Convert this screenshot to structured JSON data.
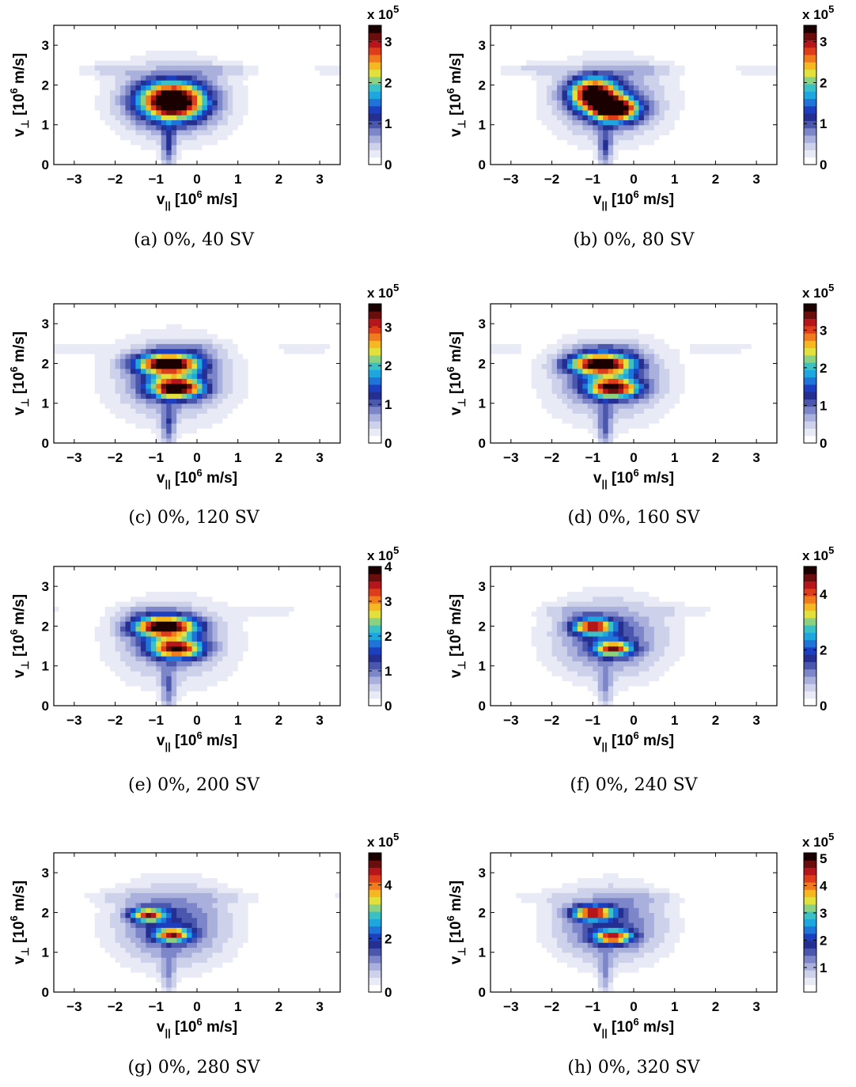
{
  "chart_data": [
    {
      "type": "heatmap",
      "caption": "(a) 0%, 40 SV",
      "x_label_base": "v",
      "x_label_sub": "||",
      "y_label_base": "v",
      "y_label_sub": "⊥",
      "unit_pre": "[10",
      "unit_exp": "6",
      "unit_post": " m/s]",
      "xlim": [
        -3.5,
        3.5
      ],
      "ylim": [
        0,
        3.5
      ],
      "x_ticks": [
        "-3",
        "-2",
        "-1",
        "0",
        "1",
        "2",
        "3"
      ],
      "y_ticks": [
        "0",
        "1",
        "2",
        "3"
      ],
      "colorbar": {
        "min": 0,
        "max": 3.4,
        "ticks": [
          "0",
          "1",
          "2",
          "3"
        ],
        "exponent_label": "x 10",
        "exponent": "5"
      },
      "peaks": [
        {
          "x": -0.6,
          "y": 1.6,
          "amp": 3.4,
          "sx": 0.55,
          "sy": 0.32
        }
      ],
      "base": {
        "x": -0.6,
        "y": 1.6,
        "amp": 1.0,
        "sx": 1.0,
        "sy": 0.7
      }
    },
    {
      "type": "heatmap",
      "caption": "(b) 0%, 80 SV",
      "x_label_base": "v",
      "x_label_sub": "||",
      "y_label_base": "v",
      "y_label_sub": "⊥",
      "unit_pre": "[10",
      "unit_exp": "6",
      "unit_post": " m/s]",
      "xlim": [
        -3.5,
        3.5
      ],
      "ylim": [
        0,
        3.5
      ],
      "x_ticks": [
        "-3",
        "-2",
        "-1",
        "0",
        "1",
        "2",
        "3"
      ],
      "y_ticks": [
        "0",
        "1",
        "2",
        "3"
      ],
      "colorbar": {
        "min": 0,
        "max": 3.4,
        "ticks": [
          "0",
          "1",
          "2",
          "3"
        ],
        "exponent_label": "x 10",
        "exponent": "5"
      },
      "peaks": [
        {
          "x": -1.0,
          "y": 1.8,
          "amp": 3.0,
          "sx": 0.4,
          "sy": 0.28
        },
        {
          "x": -0.45,
          "y": 1.4,
          "amp": 3.1,
          "sx": 0.4,
          "sy": 0.22
        }
      ],
      "base": {
        "x": -0.6,
        "y": 1.6,
        "amp": 1.0,
        "sx": 1.0,
        "sy": 0.7
      }
    },
    {
      "type": "heatmap",
      "caption": "(c) 0%, 120 SV",
      "x_label_base": "v",
      "x_label_sub": "||",
      "y_label_base": "v",
      "y_label_sub": "⊥",
      "unit_pre": "[10",
      "unit_exp": "6",
      "unit_post": " m/s]",
      "xlim": [
        -3.5,
        3.5
      ],
      "ylim": [
        0,
        3.5
      ],
      "x_ticks": [
        "-3",
        "-2",
        "-1",
        "0",
        "1",
        "2",
        "3"
      ],
      "y_ticks": [
        "0",
        "1",
        "2",
        "3"
      ],
      "colorbar": {
        "min": 0,
        "max": 3.6,
        "ticks": [
          "0",
          "1",
          "2",
          "3"
        ],
        "exponent_label": "x 10",
        "exponent": "5"
      },
      "peaks": [
        {
          "x": -0.7,
          "y": 2.0,
          "amp": 3.4,
          "sx": 0.55,
          "sy": 0.18
        },
        {
          "x": -0.5,
          "y": 1.4,
          "amp": 3.3,
          "sx": 0.45,
          "sy": 0.18
        }
      ],
      "base": {
        "x": -0.6,
        "y": 1.6,
        "amp": 1.0,
        "sx": 1.05,
        "sy": 0.75
      }
    },
    {
      "type": "heatmap",
      "caption": "(d) 0%, 160 SV",
      "x_label_base": "v",
      "x_label_sub": "||",
      "y_label_base": "v",
      "y_label_sub": "⊥",
      "unit_pre": "[10",
      "unit_exp": "6",
      "unit_post": " m/s]",
      "xlim": [
        -3.5,
        3.5
      ],
      "ylim": [
        0,
        3.5
      ],
      "x_ticks": [
        "-3",
        "-2",
        "-1",
        "0",
        "1",
        "2",
        "3"
      ],
      "y_ticks": [
        "0",
        "1",
        "2",
        "3"
      ],
      "colorbar": {
        "min": 0,
        "max": 3.7,
        "ticks": [
          "0",
          "1",
          "2",
          "3"
        ],
        "exponent_label": "x 10",
        "exponent": "5"
      },
      "peaks": [
        {
          "x": -0.8,
          "y": 2.0,
          "amp": 3.5,
          "sx": 0.55,
          "sy": 0.18
        },
        {
          "x": -0.5,
          "y": 1.4,
          "amp": 3.0,
          "sx": 0.45,
          "sy": 0.18
        }
      ],
      "base": {
        "x": -0.6,
        "y": 1.6,
        "amp": 1.0,
        "sx": 1.05,
        "sy": 0.75
      }
    },
    {
      "type": "heatmap",
      "caption": "(e) 0%, 200 SV",
      "x_label_base": "v",
      "x_label_sub": "||",
      "y_label_base": "v",
      "y_label_sub": "⊥",
      "unit_pre": "[10",
      "unit_exp": "6",
      "unit_post": " m/s]",
      "xlim": [
        -3.5,
        3.5
      ],
      "ylim": [
        0,
        3.5
      ],
      "x_ticks": [
        "-3",
        "-2",
        "-1",
        "0",
        "1",
        "2",
        "3"
      ],
      "y_ticks": [
        "0",
        "1",
        "2",
        "3"
      ],
      "colorbar": {
        "min": 0,
        "max": 4.0,
        "ticks": [
          "0",
          "1",
          "2",
          "3",
          "4"
        ],
        "exponent_label": "x 10",
        "exponent": "5"
      },
      "peaks": [
        {
          "x": -0.8,
          "y": 2.0,
          "amp": 3.8,
          "sx": 0.55,
          "sy": 0.18
        },
        {
          "x": -0.5,
          "y": 1.45,
          "amp": 3.2,
          "sx": 0.45,
          "sy": 0.17
        }
      ],
      "base": {
        "x": -0.6,
        "y": 1.6,
        "amp": 1.0,
        "sx": 1.05,
        "sy": 0.75
      }
    },
    {
      "type": "heatmap",
      "caption": "(f) 0%, 240 SV",
      "x_label_base": "v",
      "x_label_sub": "||",
      "y_label_base": "v",
      "y_label_sub": "⊥",
      "unit_pre": "[10",
      "unit_exp": "6",
      "unit_post": " m/s]",
      "xlim": [
        -3.5,
        3.5
      ],
      "ylim": [
        0,
        3.5
      ],
      "x_ticks": [
        "-3",
        "-2",
        "-1",
        "0",
        "1",
        "2",
        "3"
      ],
      "y_ticks": [
        "0",
        "1",
        "2",
        "3"
      ],
      "colorbar": {
        "min": 0,
        "max": 5.0,
        "ticks": [
          "0",
          "2",
          "4"
        ],
        "exponent_label": "x 10",
        "exponent": "5"
      },
      "peaks": [
        {
          "x": -1.0,
          "y": 2.0,
          "amp": 3.6,
          "sx": 0.35,
          "sy": 0.14
        },
        {
          "x": -0.5,
          "y": 1.45,
          "amp": 3.4,
          "sx": 0.32,
          "sy": 0.13
        }
      ],
      "base": {
        "x": -0.6,
        "y": 1.7,
        "amp": 1.6,
        "sx": 1.0,
        "sy": 0.7
      }
    },
    {
      "type": "heatmap",
      "caption": "(g) 0%, 280 SV",
      "x_label_base": "v",
      "x_label_sub": "||",
      "y_label_base": "v",
      "y_label_sub": "⊥",
      "unit_pre": "[10",
      "unit_exp": "6",
      "unit_post": " m/s]",
      "xlim": [
        -3.5,
        3.5
      ],
      "ylim": [
        0,
        3.5
      ],
      "x_ticks": [
        "-3",
        "-2",
        "-1",
        "0",
        "1",
        "2",
        "3"
      ],
      "y_ticks": [
        "0",
        "1",
        "2",
        "3"
      ],
      "colorbar": {
        "min": 0,
        "max": 5.2,
        "ticks": [
          "0",
          "2",
          "4"
        ],
        "exponent_label": "x 10",
        "exponent": "5"
      },
      "peaks": [
        {
          "x": -1.2,
          "y": 1.95,
          "amp": 3.6,
          "sx": 0.3,
          "sy": 0.12
        },
        {
          "x": -0.6,
          "y": 1.45,
          "amp": 3.4,
          "sx": 0.3,
          "sy": 0.12
        }
      ],
      "base": {
        "x": -0.6,
        "y": 1.7,
        "amp": 1.7,
        "sx": 1.0,
        "sy": 0.72
      }
    },
    {
      "type": "heatmap",
      "caption": "(h) 0%, 320 SV",
      "x_label_base": "v",
      "x_label_sub": "||",
      "y_label_base": "v",
      "y_label_sub": "⊥",
      "unit_pre": "[10",
      "unit_exp": "6",
      "unit_post": " m/s]",
      "xlim": [
        -3.5,
        3.5
      ],
      "ylim": [
        0,
        3.5
      ],
      "x_ticks": [
        "-3",
        "-2",
        "-1",
        "0",
        "1",
        "2",
        "3"
      ],
      "y_ticks": [
        "0",
        "1",
        "2",
        "3"
      ],
      "colorbar": {
        "min": 0.1,
        "max": 5.2,
        "ticks": [
          "1",
          "2",
          "3",
          "4",
          "5"
        ],
        "exponent_label": "x 10",
        "exponent": "5"
      },
      "peaks": [
        {
          "x": -1.0,
          "y": 2.0,
          "amp": 3.9,
          "sx": 0.35,
          "sy": 0.12
        },
        {
          "x": -0.5,
          "y": 1.4,
          "amp": 3.5,
          "sx": 0.32,
          "sy": 0.12
        }
      ],
      "base": {
        "x": -0.6,
        "y": 1.7,
        "amp": 1.7,
        "sx": 1.05,
        "sy": 0.72
      }
    }
  ],
  "colormap": [
    "#ffffff",
    "#e8eaf5",
    "#cdd1ea",
    "#a9b0dc",
    "#7c86c8",
    "#4a57ad",
    "#242f91",
    "#1c3fbf",
    "#1e74d8",
    "#1ea7df",
    "#39c1c6",
    "#8bd17f",
    "#e2e03c",
    "#f6b820",
    "#f07b1c",
    "#dd3d1a",
    "#b5161c",
    "#6a0d0d",
    "#1a0000"
  ]
}
